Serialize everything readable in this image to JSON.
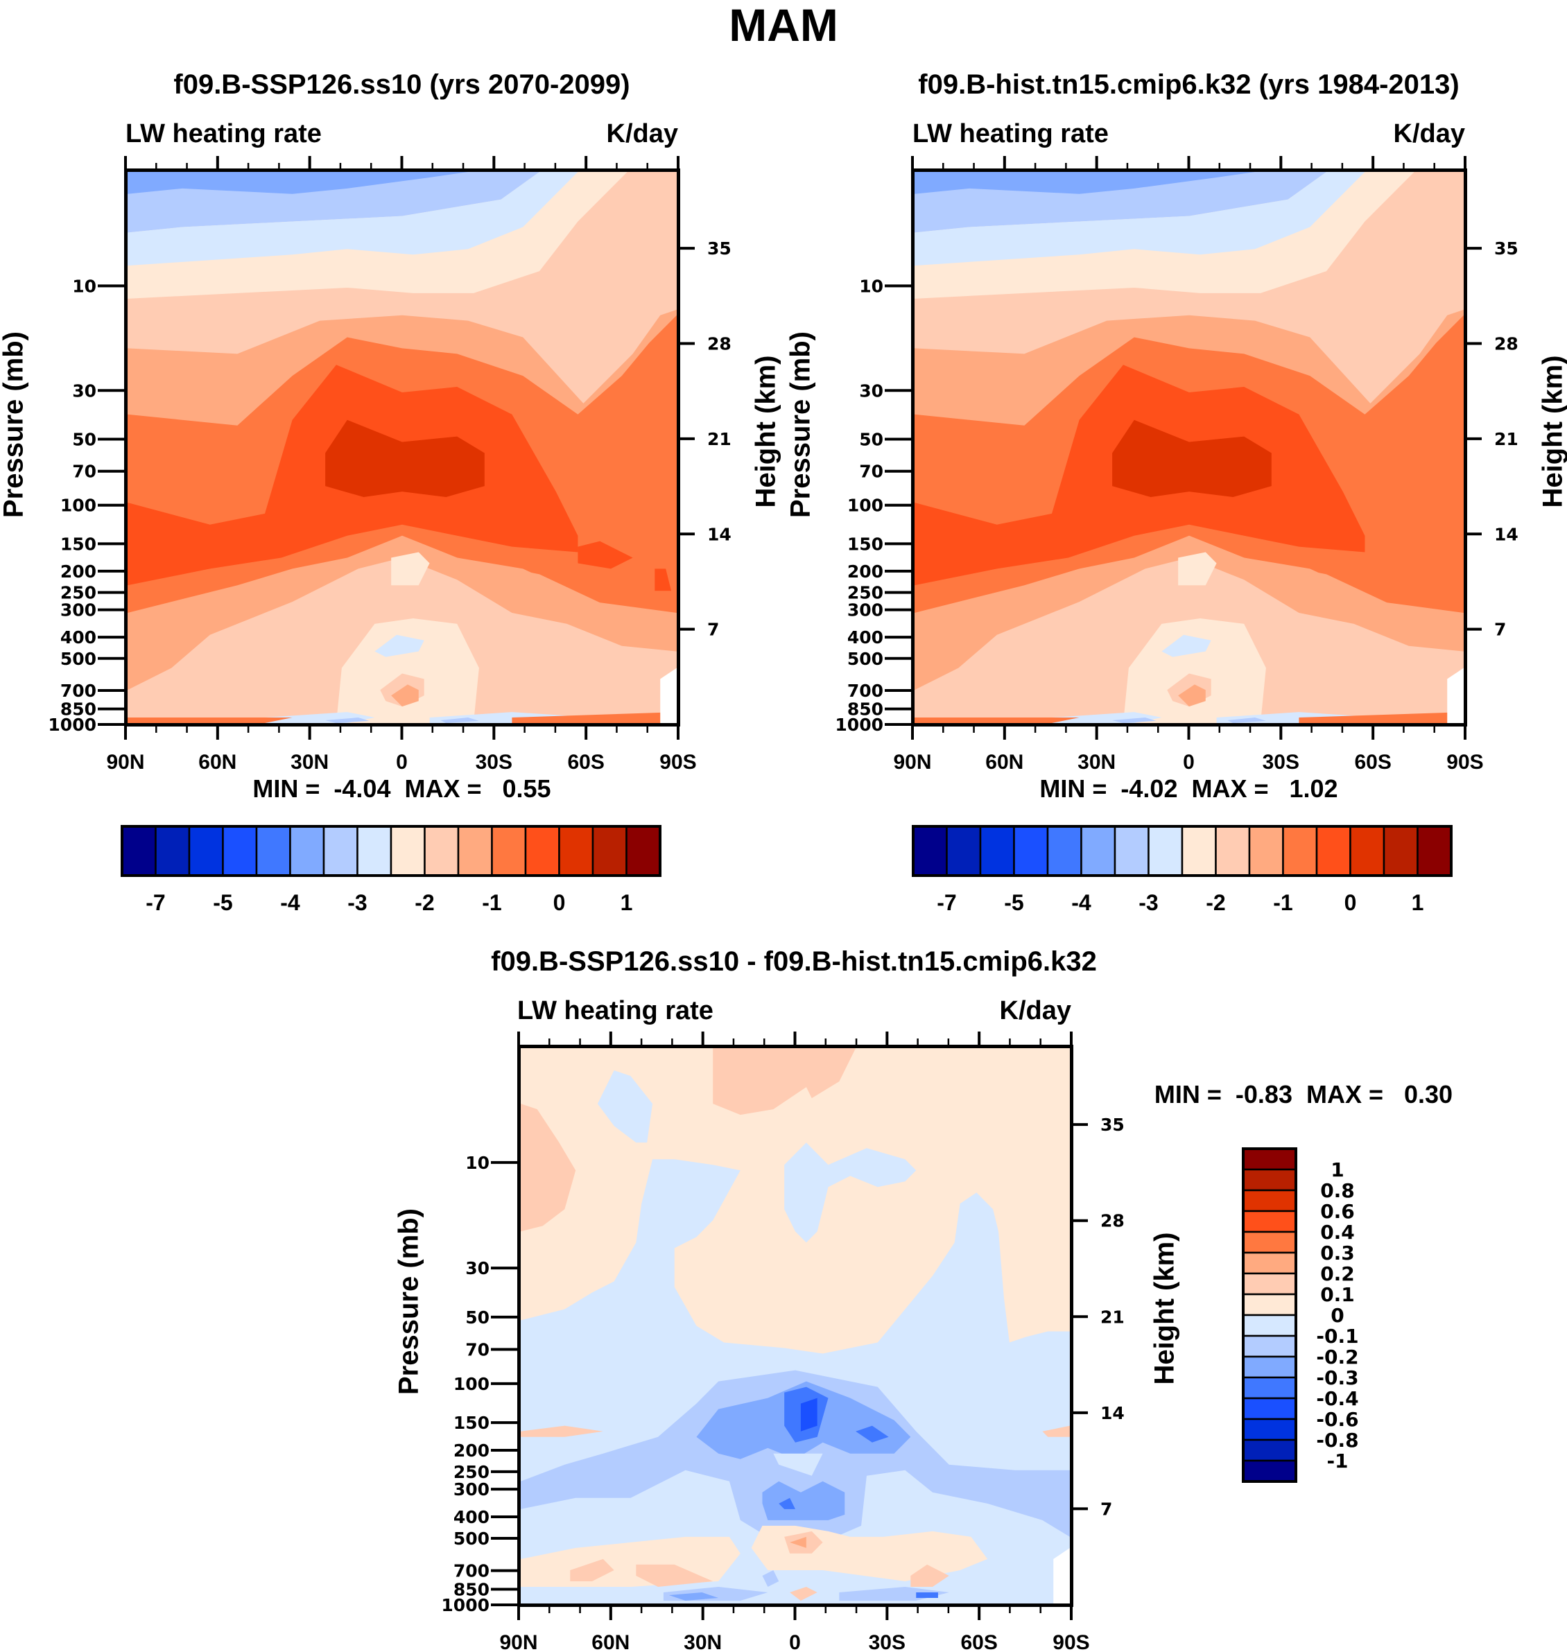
{
  "main_title": "MAM",
  "colors": {
    "palette": [
      "#00008b",
      "#0020b8",
      "#0033e0",
      "#1a50ff",
      "#4078ff",
      "#80aaff",
      "#b3ccff",
      "#d6e8ff",
      "#ffe9d6",
      "#ffccb3",
      "#ffaa80",
      "#ff7840",
      "#ff501a",
      "#e03300",
      "#b82000",
      "#8b0000"
    ]
  },
  "chart_data": [
    {
      "type": "heatmap",
      "id": "panel-ssp",
      "title": "f09.B-SSP126.ss10 (yrs 2070-2099)",
      "left_label": "LW heating rate",
      "right_label": "K/day",
      "xlabel": "",
      "ylabel": "Pressure (mb)",
      "ylabel_right": "Height (km)",
      "x_ticks": [
        "90N",
        "60N",
        "30N",
        "0",
        "30S",
        "60S",
        "90S"
      ],
      "x_range": [
        90,
        -90
      ],
      "y_ticks": [
        10,
        30,
        50,
        70,
        100,
        150,
        200,
        250,
        300,
        400,
        500,
        700,
        850,
        1000
      ],
      "y_range_mb": [
        3,
        1000
      ],
      "y_scale": "log",
      "y_right_ticks": [
        35,
        28,
        21,
        14,
        7
      ],
      "min_label": "MIN =  -4.04  MAX =   0.55",
      "min": -4.04,
      "max": 0.55,
      "colorbar": {
        "orientation": "horizontal",
        "levels": [
          "-7",
          "-5",
          "-4",
          "-3",
          "-2",
          "-1",
          "0",
          "1"
        ],
        "level_values": [
          -7,
          -6,
          -5,
          -4.5,
          -4,
          -3.5,
          -3,
          -2.5,
          -2,
          -1.5,
          -1,
          -0.5,
          0,
          0.5,
          1
        ]
      },
      "description": "Stratospheric cooling bands (blue at top), strong cooling maxima (dark orange/red) centered near 70-100 mb in tropics, weaker cooling near surface."
    },
    {
      "type": "heatmap",
      "id": "panel-hist",
      "title": "f09.B-hist.tn15.cmip6.k32 (yrs 1984-2013)",
      "left_label": "LW heating rate",
      "right_label": "K/day",
      "xlabel": "",
      "ylabel": "Pressure (mb)",
      "ylabel_right": "Height (km)",
      "x_ticks": [
        "90N",
        "60N",
        "30N",
        "0",
        "30S",
        "60S",
        "90S"
      ],
      "x_range": [
        90,
        -90
      ],
      "y_ticks": [
        10,
        30,
        50,
        70,
        100,
        150,
        200,
        250,
        300,
        400,
        500,
        700,
        850,
        1000
      ],
      "y_range_mb": [
        3,
        1000
      ],
      "y_scale": "log",
      "y_right_ticks": [
        35,
        28,
        21,
        14,
        7
      ],
      "min_label": "MIN =  -4.02  MAX =   1.02",
      "min": -4.02,
      "max": 1.02,
      "colorbar": {
        "orientation": "horizontal",
        "levels": [
          "-7",
          "-5",
          "-4",
          "-3",
          "-2",
          "-1",
          "0",
          "1"
        ],
        "level_values": [
          -7,
          -6,
          -5,
          -4.5,
          -4,
          -3.5,
          -3,
          -2.5,
          -2,
          -1.5,
          -1,
          -0.5,
          0,
          0.5,
          1
        ]
      }
    },
    {
      "type": "heatmap",
      "id": "panel-diff",
      "title": "f09.B-SSP126.ss10 - f09.B-hist.tn15.cmip6.k32",
      "left_label": "LW heating rate",
      "right_label": "K/day",
      "xlabel": "",
      "ylabel": "Pressure (mb)",
      "ylabel_right": "Height (km)",
      "x_ticks": [
        "90N",
        "60N",
        "30N",
        "0",
        "30S",
        "60S",
        "90S"
      ],
      "x_range": [
        90,
        -90
      ],
      "y_ticks": [
        10,
        30,
        50,
        70,
        100,
        150,
        200,
        250,
        300,
        400,
        500,
        700,
        850,
        1000
      ],
      "y_range_mb": [
        3,
        1000
      ],
      "y_scale": "log",
      "y_right_ticks": [
        35,
        28,
        21,
        14,
        7
      ],
      "min_label": "MIN =  -0.83  MAX =   0.30",
      "min": -0.83,
      "max": 0.3,
      "colorbar": {
        "orientation": "vertical",
        "levels": [
          "1",
          "0.8",
          "0.6",
          "0.4",
          "0.3",
          "0.2",
          "0.1",
          "0",
          "-0.1",
          "-0.2",
          "-0.3",
          "-0.4",
          "-0.6",
          "-0.8",
          "-1"
        ]
      }
    }
  ]
}
